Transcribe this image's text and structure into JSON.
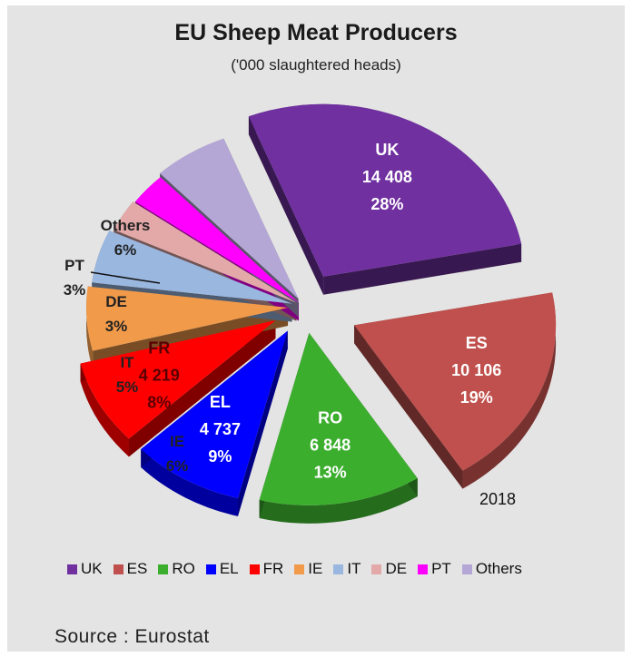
{
  "title": "EU Sheep Meat Producers",
  "subtitle": "('000 slaughtered heads)",
  "year": "2018",
  "source": "Source : Eurostat",
  "chart_data": {
    "type": "pie",
    "title": "EU Sheep Meat Producers",
    "subtitle": "('000 slaughtered heads)",
    "legend_position": "bottom",
    "exploded": true,
    "slices": [
      {
        "name": "UK",
        "value": 14408,
        "value_label": "14 408",
        "percent": 28,
        "percent_label": "28%",
        "color": "#7030a0"
      },
      {
        "name": "ES",
        "value": 10106,
        "value_label": "10 106",
        "percent": 19,
        "percent_label": "19%",
        "color": "#c0504d"
      },
      {
        "name": "RO",
        "value": 6848,
        "value_label": "6 848",
        "percent": 13,
        "percent_label": "13%",
        "color": "#3cae2e"
      },
      {
        "name": "EL",
        "value": 4737,
        "value_label": "4 737",
        "percent": 9,
        "percent_label": "9%",
        "color": "#0000ff"
      },
      {
        "name": "FR",
        "value": 4219,
        "value_label": "4 219",
        "percent": 8,
        "percent_label": "8%",
        "color": "#ff0000"
      },
      {
        "name": "IE",
        "percent": 6,
        "percent_label": "6%",
        "color": "#f09a4a"
      },
      {
        "name": "IT",
        "percent": 5,
        "percent_label": "5%",
        "color": "#9ab7e0"
      },
      {
        "name": "DE",
        "percent": 3,
        "percent_label": "3%",
        "color": "#e3a9a9"
      },
      {
        "name": "PT",
        "percent": 3,
        "percent_label": "3%",
        "color": "#ff00ff"
      },
      {
        "name": "Others",
        "percent": 6,
        "percent_label": "6%",
        "color": "#b4a7d6"
      }
    ]
  }
}
